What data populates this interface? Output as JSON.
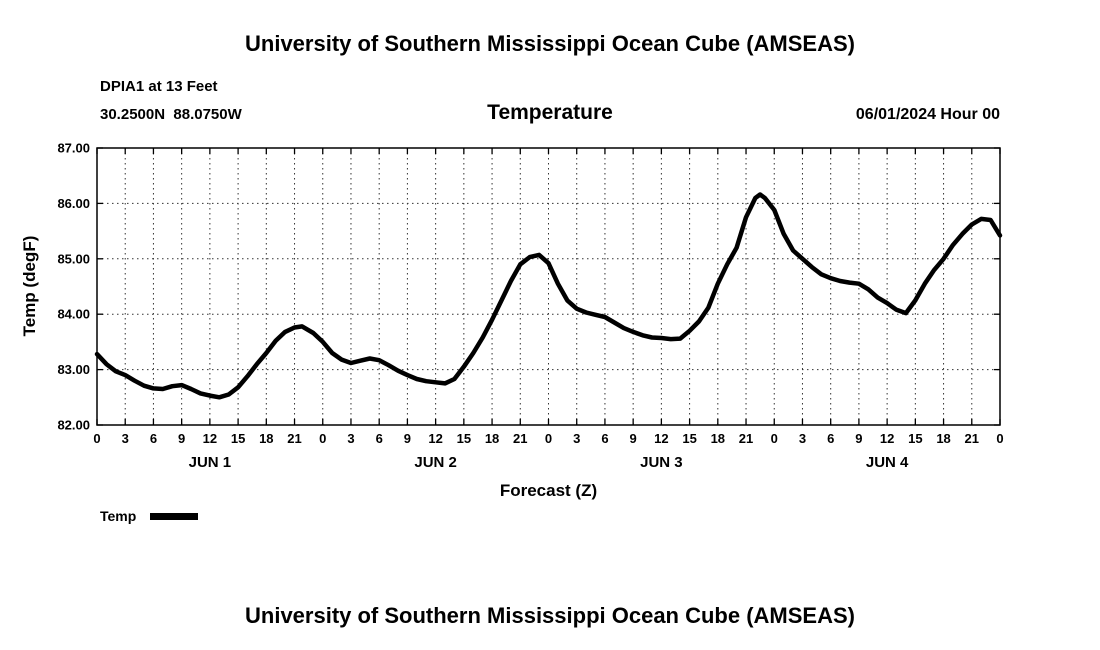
{
  "page": {
    "title_top": "University of Southern Mississippi Ocean Cube (AMSEAS)",
    "title_bottom": "University of Southern Mississippi Ocean Cube (AMSEAS)"
  },
  "header": {
    "station": "DPIA1 at 13 Feet",
    "coords": "30.2500N  88.0750W",
    "chart_title": "Temperature",
    "run_time": "06/01/2024 Hour 00"
  },
  "legend": {
    "label": "Temp"
  },
  "chart_data": {
    "type": "line",
    "title": "Temperature",
    "xlabel": "Forecast (Z)",
    "ylabel": "Temp (degF)",
    "xlim": [
      0,
      96
    ],
    "ylim": [
      82,
      87
    ],
    "x_tick_interval": 3,
    "x_tick_labels": [
      "0",
      "3",
      "6",
      "9",
      "12",
      "15",
      "18",
      "21",
      "0",
      "3",
      "6",
      "9",
      "12",
      "15",
      "18",
      "21",
      "0",
      "3",
      "6",
      "9",
      "12",
      "15",
      "18",
      "21",
      "0",
      "3",
      "6",
      "9",
      "12",
      "15",
      "18",
      "21",
      "0"
    ],
    "y_ticks": [
      82,
      83,
      84,
      85,
      86,
      87
    ],
    "y_tick_labels": [
      "82.00",
      "83.00",
      "84.00",
      "85.00",
      "86.00",
      "87.00"
    ],
    "day_labels": [
      {
        "text": "JUN 1",
        "hour": 12
      },
      {
        "text": "JUN 2",
        "hour": 36
      },
      {
        "text": "JUN 3",
        "hour": 60
      },
      {
        "text": "JUN 4",
        "hour": 84
      }
    ],
    "grid": "dotted",
    "grid_color": "#333333",
    "border_color": "#000000",
    "legend_position": "bottom-left",
    "line_width": 4.5,
    "series": [
      {
        "name": "Temp",
        "color": "#000000",
        "points": [
          [
            0,
            83.28
          ],
          [
            1,
            83.1
          ],
          [
            2,
            82.97
          ],
          [
            3,
            82.9
          ],
          [
            4,
            82.8
          ],
          [
            5,
            82.71
          ],
          [
            6,
            82.66
          ],
          [
            7,
            82.65
          ],
          [
            8,
            82.7
          ],
          [
            9,
            82.72
          ],
          [
            10,
            82.65
          ],
          [
            11,
            82.57
          ],
          [
            12,
            82.53
          ],
          [
            13,
            82.5
          ],
          [
            14,
            82.55
          ],
          [
            15,
            82.68
          ],
          [
            16,
            82.88
          ],
          [
            17,
            83.1
          ],
          [
            18,
            83.3
          ],
          [
            19,
            83.52
          ],
          [
            20,
            83.68
          ],
          [
            21,
            83.76
          ],
          [
            21.8,
            83.78
          ],
          [
            23,
            83.66
          ],
          [
            24,
            83.5
          ],
          [
            25,
            83.3
          ],
          [
            26,
            83.18
          ],
          [
            27,
            83.12
          ],
          [
            28,
            83.16
          ],
          [
            29,
            83.2
          ],
          [
            30,
            83.17
          ],
          [
            31,
            83.08
          ],
          [
            32,
            82.98
          ],
          [
            33,
            82.9
          ],
          [
            34,
            82.83
          ],
          [
            35,
            82.79
          ],
          [
            36,
            82.77
          ],
          [
            37,
            82.75
          ],
          [
            38,
            82.83
          ],
          [
            39,
            83.05
          ],
          [
            40,
            83.3
          ],
          [
            41,
            83.58
          ],
          [
            42,
            83.9
          ],
          [
            43,
            84.25
          ],
          [
            44,
            84.6
          ],
          [
            45,
            84.9
          ],
          [
            46,
            85.03
          ],
          [
            47,
            85.07
          ],
          [
            48,
            84.92
          ],
          [
            49,
            84.55
          ],
          [
            50,
            84.25
          ],
          [
            51,
            84.1
          ],
          [
            52,
            84.03
          ],
          [
            53,
            83.99
          ],
          [
            54,
            83.95
          ],
          [
            55,
            83.85
          ],
          [
            56,
            83.75
          ],
          [
            57,
            83.68
          ],
          [
            58,
            83.62
          ],
          [
            59,
            83.58
          ],
          [
            60,
            83.57
          ],
          [
            61,
            83.55
          ],
          [
            62,
            83.56
          ],
          [
            63,
            83.7
          ],
          [
            64,
            83.87
          ],
          [
            65,
            84.12
          ],
          [
            66,
            84.55
          ],
          [
            67,
            84.9
          ],
          [
            68,
            85.2
          ],
          [
            69,
            85.75
          ],
          [
            70,
            86.1
          ],
          [
            70.5,
            86.16
          ],
          [
            71,
            86.1
          ],
          [
            72,
            85.88
          ],
          [
            73,
            85.45
          ],
          [
            74,
            85.15
          ],
          [
            75,
            85.0
          ],
          [
            76,
            84.85
          ],
          [
            77,
            84.72
          ],
          [
            78,
            84.65
          ],
          [
            79,
            84.6
          ],
          [
            80,
            84.57
          ],
          [
            81,
            84.55
          ],
          [
            82,
            84.45
          ],
          [
            83,
            84.3
          ],
          [
            84,
            84.2
          ],
          [
            85,
            84.08
          ],
          [
            86,
            84.02
          ],
          [
            87,
            84.25
          ],
          [
            88,
            84.55
          ],
          [
            89,
            84.8
          ],
          [
            90,
            85.0
          ],
          [
            91,
            85.25
          ],
          [
            92,
            85.45
          ],
          [
            93,
            85.62
          ],
          [
            94,
            85.72
          ],
          [
            95,
            85.7
          ],
          [
            96,
            85.42
          ]
        ]
      }
    ]
  }
}
